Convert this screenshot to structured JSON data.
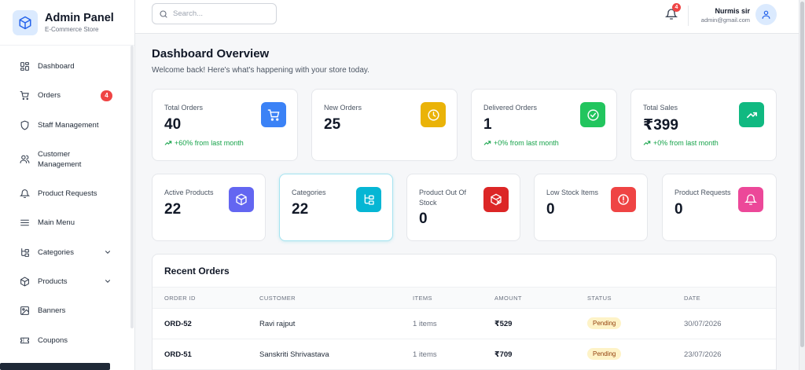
{
  "brand": {
    "title": "Admin Panel",
    "subtitle": "E-Commerce Store"
  },
  "sidebar": {
    "items": [
      {
        "label": "Dashboard",
        "icon": "grid-icon"
      },
      {
        "label": "Orders",
        "icon": "cart-icon",
        "badge": "4"
      },
      {
        "label": "Staff Management",
        "icon": "shield-icon"
      },
      {
        "label": "Customer Management",
        "icon": "users-icon"
      },
      {
        "label": "Product Requests",
        "icon": "bell-icon"
      },
      {
        "label": "Main Menu",
        "icon": "menu-icon"
      },
      {
        "label": "Categories",
        "icon": "category-tree-icon"
      },
      {
        "label": "Products",
        "icon": "box-icon"
      },
      {
        "label": "Banners",
        "icon": "image-icon"
      },
      {
        "label": "Coupons",
        "icon": "ticket-icon"
      }
    ]
  },
  "header": {
    "search_placeholder": "Search...",
    "notification_count": "4",
    "user_name": "Nurmis sir",
    "user_email": "admin@gmail.com"
  },
  "page": {
    "title": "Dashboard Overview",
    "subtitle": "Welcome back! Here's what's happening with your store today."
  },
  "stats_row1": [
    {
      "label": "Total Orders",
      "value": "40",
      "trend": "+60% from last month",
      "icon": "cart-icon",
      "color": "#3b82f6"
    },
    {
      "label": "New Orders",
      "value": "25",
      "icon": "clock-icon",
      "color": "#eab308"
    },
    {
      "label": "Delivered Orders",
      "value": "1",
      "trend": "+0% from last month",
      "icon": "check-circle-icon",
      "color": "#22c55e"
    },
    {
      "label": "Total Sales",
      "value": "₹399",
      "trend": "+0% from last month",
      "icon": "trending-up-icon",
      "color": "#10b981"
    }
  ],
  "stats_row2": [
    {
      "label": "Active Products",
      "value": "22",
      "icon": "box-icon",
      "color": "#6366f1"
    },
    {
      "label": "Categories",
      "value": "22",
      "icon": "category-tree-icon",
      "color": "#06b6d4"
    },
    {
      "label": "Product Out Of Stock",
      "value": "0",
      "icon": "box-x-icon",
      "color": "#dc2626"
    },
    {
      "label": "Low Stock Items",
      "value": "0",
      "icon": "alert-circle-icon",
      "color": "#ef4444"
    },
    {
      "label": "Product Requests",
      "value": "0",
      "icon": "bell-icon",
      "color": "#ec4899"
    }
  ],
  "recent_orders": {
    "title": "Recent Orders",
    "columns": [
      "ORDER ID",
      "CUSTOMER",
      "ITEMS",
      "AMOUNT",
      "STATUS",
      "DATE"
    ],
    "rows": [
      {
        "id": "ORD-52",
        "customer": "Ravi rajput",
        "items": "1 items",
        "amount": "₹529",
        "status": "Pending",
        "date": "30/07/2026"
      },
      {
        "id": "ORD-51",
        "customer": "Sanskriti Shrivastava",
        "items": "1 items",
        "amount": "₹709",
        "status": "Pending",
        "date": "23/07/2026"
      }
    ]
  }
}
